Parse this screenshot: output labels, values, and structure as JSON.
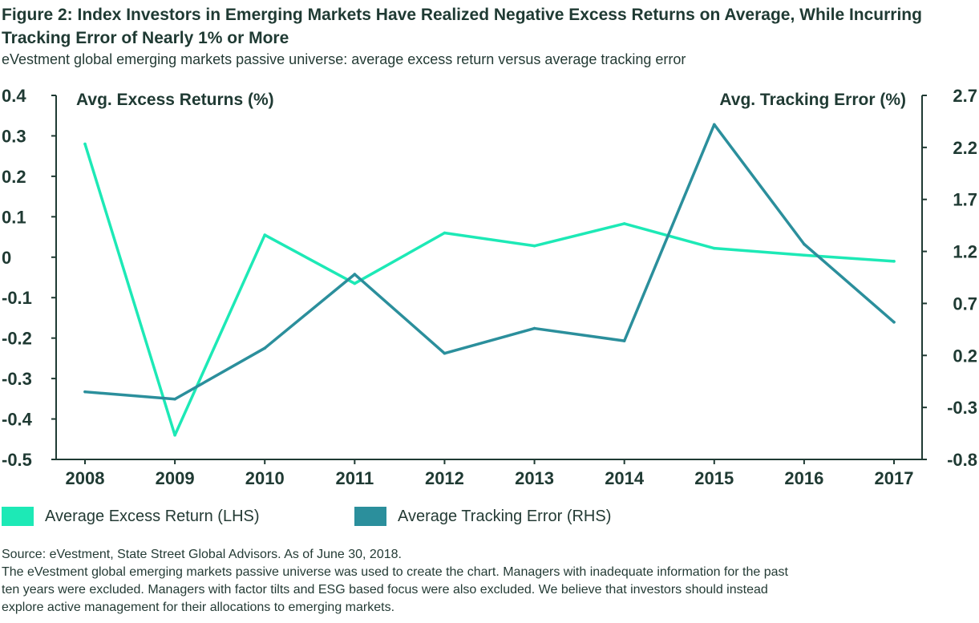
{
  "title": "Figure 2: Index Investors in Emerging Markets Have Realized Negative Excess Returns on Average, While Incurring Tracking Error of Nearly 1% or More",
  "subtitle": "eVestment global emerging markets passive universe: average excess return versus average tracking error",
  "colors": {
    "excess": "#1de9b6",
    "tracking": "#2b8f9c",
    "axis": "#1f3a33"
  },
  "chart_data": {
    "type": "line",
    "x": [
      "2008",
      "2009",
      "2010",
      "2011",
      "2012",
      "2013",
      "2014",
      "2015",
      "2016",
      "2017"
    ],
    "left_axis": {
      "label": "Avg. Excess Returns (%)",
      "ylim": [
        -0.5,
        0.4
      ],
      "ticks": [
        "0.4",
        "0.3",
        "0.2",
        "0.1",
        "0",
        "-0.1",
        "-0.2",
        "-0.3",
        "-0.4",
        "-0.5"
      ]
    },
    "right_axis": {
      "label": "Avg. Tracking Error (%)",
      "ylim": [
        -0.8,
        2.7
      ],
      "ticks": [
        "2.7",
        "2.2",
        "1.7",
        "1.2",
        "0.7",
        "0.2",
        "-0.3",
        "-0.8"
      ]
    },
    "series": [
      {
        "name": "Average Excess Return (LHS)",
        "axis": "left",
        "values": [
          0.28,
          -0.44,
          0.055,
          -0.065,
          0.06,
          0.028,
          0.083,
          0.022,
          0.005,
          -0.01
        ]
      },
      {
        "name": "Average Tracking Error (RHS)",
        "axis": "right",
        "values": [
          -0.15,
          -0.22,
          0.27,
          0.98,
          0.22,
          0.46,
          0.34,
          2.42,
          1.27,
          0.52
        ]
      }
    ],
    "grid": false,
    "legend_position": "bottom-left"
  },
  "legend": [
    {
      "label": "Average Excess Return (LHS)"
    },
    {
      "label": "Average Tracking Error (RHS)"
    }
  ],
  "source": {
    "line1": "Source: eVestment, State Street Global Advisors. As of June 30, 2018.",
    "line2": "The eVestment global emerging markets passive universe was used to create the chart. Managers with inadequate information for the past",
    "line3": "ten years were excluded. Managers with factor tilts and ESG based focus were also excluded. We believe that investors should instead",
    "line4": "explore active management for their allocations to emerging markets."
  }
}
